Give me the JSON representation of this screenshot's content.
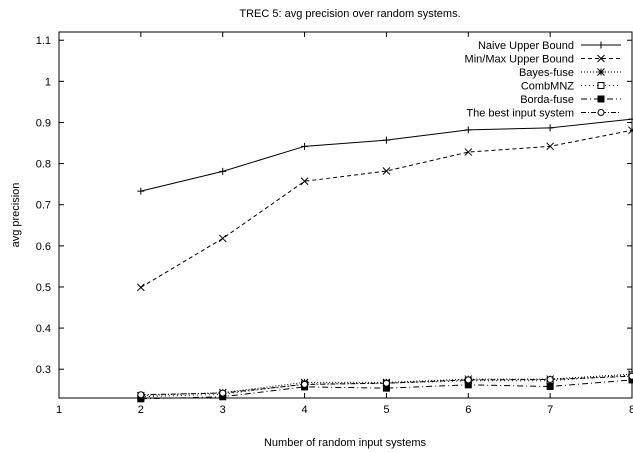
{
  "chart_data": {
    "type": "line",
    "title": "TREC 5: avg precision over random systems.",
    "xlabel": "Number of random input systems",
    "ylabel": "avg precision",
    "xlim": [
      1,
      8
    ],
    "ylim": [
      0.23,
      1.12
    ],
    "xticks": [
      1,
      2,
      3,
      4,
      5,
      6,
      7,
      8
    ],
    "yticks": [
      0.3,
      0.4,
      0.5,
      0.6,
      0.7,
      0.8,
      0.9,
      1,
      1.1
    ],
    "x": [
      2,
      3,
      4,
      5,
      6,
      7,
      8
    ],
    "grid": false,
    "legend_position": "top-right",
    "series": [
      {
        "name": "Naive Upper Bound",
        "values": [
          0.733,
          0.781,
          0.842,
          0.857,
          0.882,
          0.887,
          0.908
        ],
        "marker": "plus",
        "dash": ""
      },
      {
        "name": "Min/Max Upper Bound",
        "values": [
          0.499,
          0.618,
          0.757,
          0.782,
          0.828,
          0.842,
          0.881
        ],
        "marker": "cross",
        "dash": "4,3"
      },
      {
        "name": "Bayes-fuse",
        "values": [
          0.236,
          0.243,
          0.268,
          0.268,
          0.276,
          0.276,
          0.288
        ],
        "marker": "star",
        "dash": "1,2"
      },
      {
        "name": "CombMNZ",
        "values": [
          0.233,
          0.239,
          0.264,
          0.266,
          0.272,
          0.272,
          0.286
        ],
        "marker": "square-open",
        "dash": "1,3"
      },
      {
        "name": "Borda-fuse",
        "values": [
          0.228,
          0.233,
          0.257,
          0.254,
          0.262,
          0.258,
          0.274
        ],
        "marker": "square-filled",
        "dash": "6,3,1,3"
      },
      {
        "name": "The best input system",
        "values": [
          0.238,
          0.242,
          0.263,
          0.266,
          0.274,
          0.275,
          0.283
        ],
        "marker": "circle-open",
        "dash": "5,2,1,2"
      }
    ]
  }
}
